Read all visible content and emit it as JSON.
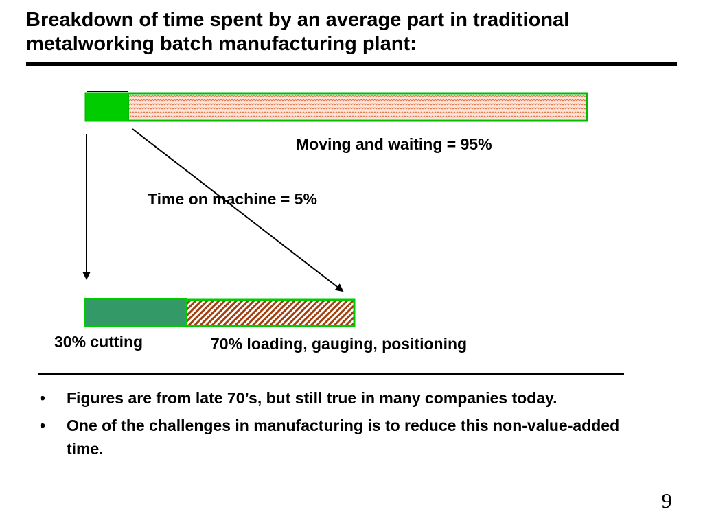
{
  "slide": {
    "title": "Breakdown of time spent by an average part in traditional metalworking batch manufacturing plant:",
    "page_number": "9"
  },
  "diagram": {
    "top_bar": {
      "segments": [
        {
          "share": 5,
          "fill": "#00cc00",
          "pattern": "solid"
        },
        {
          "share": 95,
          "fill": "#ffd8c8",
          "pattern": "wavy-hatch",
          "pattern_color": "#e07850"
        }
      ],
      "border_color": "#00bb00"
    },
    "bottom_bar": {
      "segments": [
        {
          "share": 30,
          "fill": "#339966",
          "pattern": "solid"
        },
        {
          "share": 70,
          "fill": "#ffffff",
          "pattern": "diagonal-hatch",
          "pattern_color": "#a04010"
        }
      ],
      "border_color": "#00cc00"
    },
    "labels": {
      "moving_waiting": "Moving and waiting =  95%",
      "time_on_machine": "Time on machine = 5%",
      "cutting": "30% cutting",
      "loading": "70% loading, gauging, positioning"
    }
  },
  "bullets": [
    {
      "marker": "•",
      "text": "Figures are from late 70’s, but still true in many companies today."
    },
    {
      "marker": "•",
      "text": "One of the challenges in manufacturing is to reduce this non-value-added time."
    }
  ]
}
